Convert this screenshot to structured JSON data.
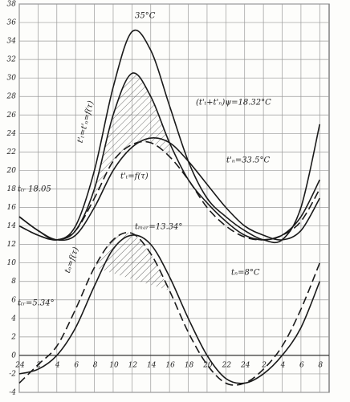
{
  "chart_data": {
    "type": "line",
    "x": [
      0,
      2,
      4,
      6,
      8,
      10,
      12,
      14,
      16,
      18,
      20,
      22,
      24,
      26,
      28,
      30,
      32
    ],
    "xlim": [
      0,
      33
    ],
    "xticks": [
      {
        "value": 0,
        "label": "24"
      },
      2,
      4,
      6,
      8,
      10,
      12,
      14,
      16,
      18,
      20,
      22,
      24,
      {
        "value": 26,
        "label": "2"
      },
      {
        "value": 28,
        "label": "4"
      },
      {
        "value": 30,
        "label": "6"
      },
      {
        "value": 32,
        "label": "8"
      }
    ],
    "ylim": [
      -4,
      38
    ],
    "yticks": [
      -4,
      -2,
      0,
      2,
      4,
      6,
      8,
      10,
      12,
      14,
      16,
      18,
      20,
      22,
      24,
      26,
      28,
      30,
      32,
      34,
      36,
      38
    ],
    "grid": true,
    "series": [
      {
        "color": "#1a1a1a",
        "style": "solid",
        "values": [
          15,
          13.5,
          12.5,
          14,
          20,
          29,
          35,
          33,
          27,
          21,
          17,
          15,
          13.5,
          12.5,
          12.5,
          16,
          25
        ]
      },
      {
        "color": "#1a1a1a",
        "style": "solid",
        "values": [
          14,
          13,
          12.5,
          13.5,
          18,
          26,
          30.5,
          28,
          23,
          19,
          16.5,
          14.5,
          13,
          12.5,
          13,
          15,
          19
        ]
      },
      {
        "color": "#1a1a1a",
        "style": "solid",
        "values": [
          15,
          13.5,
          12.5,
          13,
          16,
          20,
          22.5,
          23.5,
          23,
          21,
          18.5,
          16,
          14,
          13,
          12.5,
          13.5,
          17
        ]
      },
      {
        "color": "#1a1a1a",
        "style": "dashed",
        "values": [
          14,
          13,
          12.5,
          13.5,
          17,
          21,
          22.8,
          23,
          21.5,
          19,
          16,
          14,
          12.8,
          12.5,
          13,
          14.5,
          18
        ]
      },
      {
        "color": "#1a1a1a",
        "style": "solid",
        "values": [
          -2,
          -1.5,
          0,
          3,
          7.5,
          11.5,
          13,
          12,
          8.5,
          4,
          0,
          -2.5,
          -3,
          -2,
          0,
          3,
          8
        ]
      },
      {
        "color": "#1a1a1a",
        "style": "dashed",
        "values": [
          -3,
          -1,
          1,
          5,
          9.5,
          12.5,
          13.2,
          11,
          7,
          2.5,
          -1,
          -3,
          -3,
          -1.5,
          1,
          5,
          10
        ]
      }
    ],
    "annotations": [
      "35°C",
      "(t'ₜ+t'ₙ)ψ=18.32°C",
      "t'ₙ=33.5°C",
      "t'ₜ=f(τ)",
      "tₜᵣ 18.05",
      "tₘₐᵣ=13.34°",
      "tₙ=8°C",
      "tₜᵣ=5.34°",
      "tₙ=f(τ)",
      "t'ₜ=t'ₙ=f(τ)"
    ]
  }
}
